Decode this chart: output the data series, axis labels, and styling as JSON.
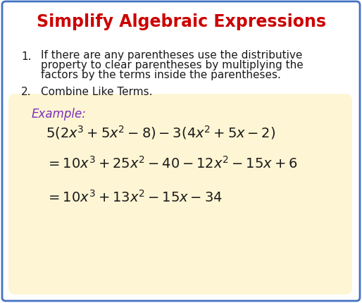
{
  "title": "Simplify Algebraic Expressions",
  "title_color": "#cc0000",
  "title_fontsize": 17,
  "body_bg": "#ffffff",
  "border_color": "#4472c4",
  "item1_number": "1.",
  "item1_line1": "If there are any parentheses use the distributive",
  "item1_line2": "property to clear parentheses by multiplying the",
  "item1_line3": "factors by the terms inside the parentheses.",
  "item2_number": "2.",
  "item2": "Combine Like Terms.",
  "example_label": "Example:",
  "example_label_color": "#7b2fbe",
  "example_bg": "#fef5d4",
  "text_color": "#1a1a1a",
  "text_fontsize": 11,
  "math_fontsize": 14,
  "math_line1": "$5\\left(2x^3+5x^2-8\\right)-3\\left(4x^2+5x-2\\right)$",
  "math_line2": "$=10x^3+25x^2-40-12x^2-15x+6$",
  "math_line3": "$=10x^3+13x^2-15x-34$"
}
